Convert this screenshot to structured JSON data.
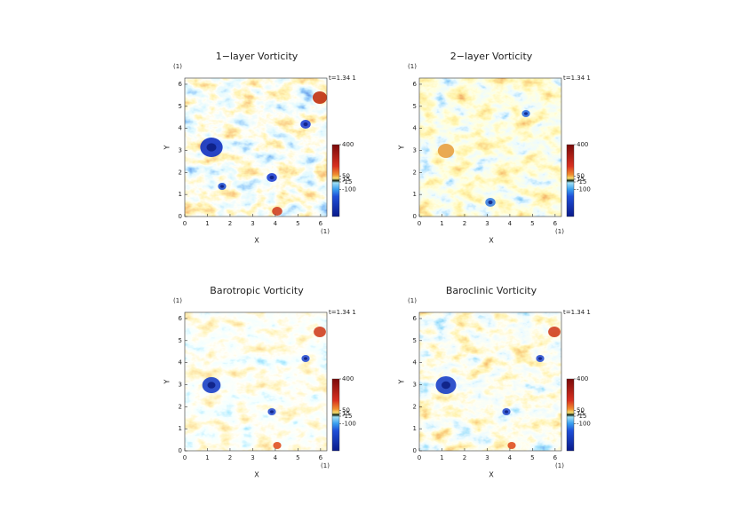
{
  "chart_data": [
    {
      "type": "heatmap",
      "title": "1−layer Vorticity",
      "xlabel": "X",
      "ylabel": "Y",
      "xunit": "(1)",
      "yunit": "(1)",
      "time_label": "t=1.34 1",
      "xlim": [
        0,
        6.28
      ],
      "ylim": [
        0,
        6.28
      ],
      "xticks": [
        0,
        1,
        2,
        3,
        4,
        5,
        6
      ],
      "yticks": [
        0,
        1,
        2,
        3,
        4,
        5,
        6
      ],
      "colorbar": {
        "lim": [
          -400,
          400
        ],
        "ticks": [
          400,
          50,
          15,
          -15,
          -100
        ]
      }
    },
    {
      "type": "heatmap",
      "title": "2−layer Vorticity",
      "xlabel": "X",
      "ylabel": "Y",
      "xunit": "(1)",
      "yunit": "(1)",
      "time_label": "t=1.34 1",
      "xlim": [
        0,
        6.28
      ],
      "ylim": [
        0,
        6.28
      ],
      "xticks": [
        0,
        1,
        2,
        3,
        4,
        5,
        6
      ],
      "yticks": [
        0,
        1,
        2,
        3,
        4,
        5,
        6
      ],
      "colorbar": {
        "lim": [
          -400,
          400
        ],
        "ticks": [
          400,
          50,
          15,
          -15,
          -100
        ]
      }
    },
    {
      "type": "heatmap",
      "title": "Barotropic Vorticity",
      "xlabel": "X",
      "ylabel": "Y",
      "xunit": "(1)",
      "yunit": "(1)",
      "time_label": "t=1.34 1",
      "xlim": [
        0,
        6.28
      ],
      "ylim": [
        0,
        6.28
      ],
      "xticks": [
        0,
        1,
        2,
        3,
        4,
        5,
        6
      ],
      "yticks": [
        0,
        1,
        2,
        3,
        4,
        5,
        6
      ],
      "colorbar": {
        "lim": [
          -400,
          400
        ],
        "ticks": [
          400,
          50,
          15,
          -15,
          -100
        ]
      }
    },
    {
      "type": "heatmap",
      "title": "Baroclinic Vorticity",
      "xlabel": "X",
      "ylabel": "Y",
      "xunit": "(1)",
      "yunit": "(1)",
      "time_label": "t=1.34 1",
      "xlim": [
        0,
        6.28
      ],
      "ylim": [
        0,
        6.28
      ],
      "xticks": [
        0,
        1,
        2,
        3,
        4,
        5,
        6
      ],
      "yticks": [
        0,
        1,
        2,
        3,
        4,
        5,
        6
      ],
      "colorbar": {
        "lim": [
          -400,
          400
        ],
        "ticks": [
          400,
          50,
          15,
          -15,
          -100
        ]
      }
    }
  ]
}
